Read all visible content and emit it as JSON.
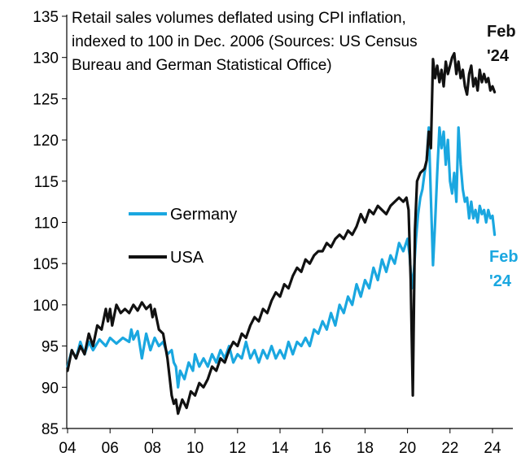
{
  "chart_data": {
    "type": "line",
    "title_lines": [
      "Retail sales volumes deflated using CPI inflation,",
      "indexed to 100 in Dec. 2006 (Sources: US Census",
      "Bureau and German Statistical Office)"
    ],
    "xlim": [
      2004,
      2024.5
    ],
    "ylim": [
      85,
      135
    ],
    "x_ticks": [
      {
        "value": 2004,
        "label": "04"
      },
      {
        "value": 2006,
        "label": "06"
      },
      {
        "value": 2008,
        "label": "08"
      },
      {
        "value": 2010,
        "label": "10"
      },
      {
        "value": 2012,
        "label": "12"
      },
      {
        "value": 2014,
        "label": "14"
      },
      {
        "value": 2016,
        "label": "16"
      },
      {
        "value": 2018,
        "label": "18"
      },
      {
        "value": 2020,
        "label": "20"
      },
      {
        "value": 2022,
        "label": "22"
      },
      {
        "value": 2024,
        "label": "24"
      }
    ],
    "y_ticks": [
      85,
      90,
      95,
      100,
      105,
      110,
      115,
      120,
      125,
      130,
      135
    ],
    "grid": false,
    "legend": {
      "placement": "center-left",
      "entries": [
        {
          "series": "Germany",
          "label": "Germany"
        },
        {
          "series": "USA",
          "label": "USA"
        }
      ]
    },
    "end_labels": [
      {
        "series": "USA",
        "lines": [
          "Feb",
          "'24"
        ],
        "color": "#111111"
      },
      {
        "series": "Germany",
        "lines": [
          "Feb",
          "'24"
        ],
        "color": "#1aa7e0"
      }
    ],
    "series": [
      {
        "name": "Germany",
        "color": "#1aa7e0",
        "points": [
          [
            2004.0,
            92.5
          ],
          [
            2004.2,
            94.5
          ],
          [
            2004.4,
            93.5
          ],
          [
            2004.6,
            95.5
          ],
          [
            2004.8,
            94.0
          ],
          [
            2005.0,
            95.5
          ],
          [
            2005.2,
            94.5
          ],
          [
            2005.5,
            95.8
          ],
          [
            2005.8,
            95.0
          ],
          [
            2006.0,
            96.0
          ],
          [
            2006.3,
            95.3
          ],
          [
            2006.6,
            96.0
          ],
          [
            2006.9,
            95.5
          ],
          [
            2007.0,
            97.0
          ],
          [
            2007.1,
            95.8
          ],
          [
            2007.3,
            96.8
          ],
          [
            2007.5,
            93.5
          ],
          [
            2007.7,
            96.5
          ],
          [
            2007.9,
            94.5
          ],
          [
            2008.1,
            96.0
          ],
          [
            2008.3,
            95.0
          ],
          [
            2008.5,
            95.5
          ],
          [
            2008.7,
            94.0
          ],
          [
            2008.9,
            94.5
          ],
          [
            2009.0,
            93.0
          ],
          [
            2009.1,
            92.5
          ],
          [
            2009.2,
            90.0
          ],
          [
            2009.3,
            92.0
          ],
          [
            2009.5,
            91.0
          ],
          [
            2009.7,
            93.0
          ],
          [
            2009.9,
            92.0
          ],
          [
            2010.0,
            94.0
          ],
          [
            2010.2,
            92.5
          ],
          [
            2010.4,
            93.5
          ],
          [
            2010.6,
            92.5
          ],
          [
            2010.8,
            94.0
          ],
          [
            2011.0,
            93.0
          ],
          [
            2011.2,
            94.5
          ],
          [
            2011.4,
            93.5
          ],
          [
            2011.6,
            95.0
          ],
          [
            2011.8,
            93.0
          ],
          [
            2012.0,
            94.0
          ],
          [
            2012.2,
            93.5
          ],
          [
            2012.4,
            95.5
          ],
          [
            2012.6,
            93.5
          ],
          [
            2012.8,
            94.5
          ],
          [
            2013.0,
            93.0
          ],
          [
            2013.2,
            94.5
          ],
          [
            2013.4,
            93.5
          ],
          [
            2013.6,
            95.0
          ],
          [
            2013.8,
            93.5
          ],
          [
            2014.0,
            94.5
          ],
          [
            2014.2,
            93.5
          ],
          [
            2014.4,
            95.5
          ],
          [
            2014.6,
            94.0
          ],
          [
            2014.8,
            95.5
          ],
          [
            2015.0,
            95.0
          ],
          [
            2015.2,
            96.0
          ],
          [
            2015.4,
            95.0
          ],
          [
            2015.6,
            97.0
          ],
          [
            2015.8,
            96.5
          ],
          [
            2016.0,
            98.0
          ],
          [
            2016.2,
            97.0
          ],
          [
            2016.4,
            99.0
          ],
          [
            2016.6,
            97.5
          ],
          [
            2016.8,
            100.0
          ],
          [
            2017.0,
            99.0
          ],
          [
            2017.2,
            101.0
          ],
          [
            2017.4,
            100.0
          ],
          [
            2017.6,
            102.5
          ],
          [
            2017.8,
            101.0
          ],
          [
            2018.0,
            103.0
          ],
          [
            2018.2,
            102.0
          ],
          [
            2018.4,
            104.5
          ],
          [
            2018.6,
            103.0
          ],
          [
            2018.8,
            105.5
          ],
          [
            2019.0,
            104.0
          ],
          [
            2019.2,
            106.0
          ],
          [
            2019.4,
            105.0
          ],
          [
            2019.6,
            107.5
          ],
          [
            2019.8,
            106.5
          ],
          [
            2020.0,
            108.0
          ],
          [
            2020.1,
            106.0
          ],
          [
            2020.2,
            102.0
          ],
          [
            2020.3,
            104.0
          ],
          [
            2020.4,
            108.0
          ],
          [
            2020.5,
            111.0
          ],
          [
            2020.6,
            113.0
          ],
          [
            2020.7,
            114.0
          ],
          [
            2020.8,
            116.0
          ],
          [
            2020.9,
            117.5
          ],
          [
            2021.0,
            121.5
          ],
          [
            2021.1,
            113.0
          ],
          [
            2021.2,
            104.8
          ],
          [
            2021.3,
            110.0
          ],
          [
            2021.4,
            116.0
          ],
          [
            2021.5,
            121.5
          ],
          [
            2021.6,
            119.0
          ],
          [
            2021.7,
            121.0
          ],
          [
            2021.8,
            117.0
          ],
          [
            2021.9,
            120.0
          ],
          [
            2022.0,
            115.0
          ],
          [
            2022.1,
            113.5
          ],
          [
            2022.2,
            116.0
          ],
          [
            2022.3,
            112.5
          ],
          [
            2022.4,
            121.5
          ],
          [
            2022.5,
            117.0
          ],
          [
            2022.6,
            114.0
          ],
          [
            2022.7,
            112.5
          ],
          [
            2022.8,
            113.0
          ],
          [
            2022.9,
            110.5
          ],
          [
            2023.0,
            112.5
          ],
          [
            2023.1,
            110.5
          ],
          [
            2023.2,
            111.5
          ],
          [
            2023.3,
            110.0
          ],
          [
            2023.4,
            112.0
          ],
          [
            2023.5,
            111.0
          ],
          [
            2023.6,
            111.5
          ],
          [
            2023.7,
            110.0
          ],
          [
            2023.8,
            111.5
          ],
          [
            2023.9,
            110.5
          ],
          [
            2024.0,
            110.8
          ],
          [
            2024.1,
            108.5
          ]
        ]
      },
      {
        "name": "USA",
        "color": "#111111",
        "points": [
          [
            2004.0,
            92.0
          ],
          [
            2004.2,
            94.5
          ],
          [
            2004.4,
            93.5
          ],
          [
            2004.6,
            95.0
          ],
          [
            2004.8,
            94.0
          ],
          [
            2005.0,
            96.5
          ],
          [
            2005.2,
            95.0
          ],
          [
            2005.4,
            97.5
          ],
          [
            2005.6,
            97.0
          ],
          [
            2005.8,
            99.5
          ],
          [
            2005.9,
            98.0
          ],
          [
            2006.0,
            99.5
          ],
          [
            2006.1,
            97.5
          ],
          [
            2006.3,
            100.0
          ],
          [
            2006.5,
            99.0
          ],
          [
            2006.7,
            99.5
          ],
          [
            2006.9,
            99.0
          ],
          [
            2007.1,
            100.0
          ],
          [
            2007.3,
            99.3
          ],
          [
            2007.5,
            100.3
          ],
          [
            2007.7,
            99.5
          ],
          [
            2007.9,
            100.0
          ],
          [
            2008.0,
            98.5
          ],
          [
            2008.1,
            99.5
          ],
          [
            2008.3,
            97.0
          ],
          [
            2008.5,
            96.5
          ],
          [
            2008.7,
            93.5
          ],
          [
            2008.9,
            89.0
          ],
          [
            2009.0,
            88.0
          ],
          [
            2009.1,
            88.5
          ],
          [
            2009.2,
            86.8
          ],
          [
            2009.4,
            88.5
          ],
          [
            2009.6,
            87.5
          ],
          [
            2009.8,
            89.5
          ],
          [
            2010.0,
            89.0
          ],
          [
            2010.2,
            90.5
          ],
          [
            2010.4,
            90.0
          ],
          [
            2010.6,
            91.0
          ],
          [
            2010.8,
            92.5
          ],
          [
            2011.0,
            92.0
          ],
          [
            2011.2,
            93.5
          ],
          [
            2011.4,
            93.0
          ],
          [
            2011.6,
            94.5
          ],
          [
            2011.8,
            95.5
          ],
          [
            2012.0,
            95.0
          ],
          [
            2012.2,
            96.5
          ],
          [
            2012.4,
            96.0
          ],
          [
            2012.6,
            97.5
          ],
          [
            2012.8,
            98.5
          ],
          [
            2013.0,
            98.0
          ],
          [
            2013.2,
            99.5
          ],
          [
            2013.4,
            99.0
          ],
          [
            2013.6,
            100.5
          ],
          [
            2013.8,
            101.5
          ],
          [
            2014.0,
            101.0
          ],
          [
            2014.2,
            102.5
          ],
          [
            2014.4,
            102.0
          ],
          [
            2014.6,
            103.5
          ],
          [
            2014.8,
            104.5
          ],
          [
            2015.0,
            104.0
          ],
          [
            2015.2,
            105.5
          ],
          [
            2015.4,
            105.0
          ],
          [
            2015.6,
            106.0
          ],
          [
            2015.8,
            106.5
          ],
          [
            2016.0,
            106.5
          ],
          [
            2016.2,
            107.5
          ],
          [
            2016.4,
            107.0
          ],
          [
            2016.6,
            108.0
          ],
          [
            2016.8,
            108.5
          ],
          [
            2017.0,
            108.0
          ],
          [
            2017.2,
            109.0
          ],
          [
            2017.4,
            108.5
          ],
          [
            2017.6,
            109.5
          ],
          [
            2017.8,
            111.0
          ],
          [
            2018.0,
            110.0
          ],
          [
            2018.2,
            111.5
          ],
          [
            2018.4,
            111.0
          ],
          [
            2018.6,
            112.0
          ],
          [
            2018.8,
            111.5
          ],
          [
            2019.0,
            111.0
          ],
          [
            2019.2,
            112.0
          ],
          [
            2019.4,
            112.5
          ],
          [
            2019.6,
            113.0
          ],
          [
            2019.8,
            112.5
          ],
          [
            2019.95,
            113.0
          ],
          [
            2020.05,
            111.5
          ],
          [
            2020.15,
            103.0
          ],
          [
            2020.25,
            89.0
          ],
          [
            2020.35,
            109.0
          ],
          [
            2020.45,
            115.0
          ],
          [
            2020.6,
            116.0
          ],
          [
            2020.8,
            116.5
          ],
          [
            2020.9,
            117.5
          ],
          [
            2021.0,
            121.0
          ],
          [
            2021.1,
            119.0
          ],
          [
            2021.2,
            129.8
          ],
          [
            2021.3,
            127.5
          ],
          [
            2021.4,
            129.0
          ],
          [
            2021.5,
            127.0
          ],
          [
            2021.6,
            128.5
          ],
          [
            2021.7,
            126.5
          ],
          [
            2021.8,
            129.5
          ],
          [
            2021.9,
            128.0
          ],
          [
            2022.0,
            129.0
          ],
          [
            2022.1,
            130.0
          ],
          [
            2022.2,
            130.5
          ],
          [
            2022.3,
            128.0
          ],
          [
            2022.4,
            129.5
          ],
          [
            2022.5,
            127.5
          ],
          [
            2022.6,
            128.5
          ],
          [
            2022.7,
            126.5
          ],
          [
            2022.8,
            125.5
          ],
          [
            2022.9,
            128.0
          ],
          [
            2023.0,
            129.0
          ],
          [
            2023.1,
            126.5
          ],
          [
            2023.2,
            127.5
          ],
          [
            2023.3,
            126.0
          ],
          [
            2023.4,
            128.5
          ],
          [
            2023.5,
            127.0
          ],
          [
            2023.6,
            128.0
          ],
          [
            2023.7,
            127.0
          ],
          [
            2023.8,
            127.5
          ],
          [
            2023.9,
            126.0
          ],
          [
            2024.0,
            126.5
          ],
          [
            2024.1,
            125.8
          ]
        ]
      }
    ]
  }
}
